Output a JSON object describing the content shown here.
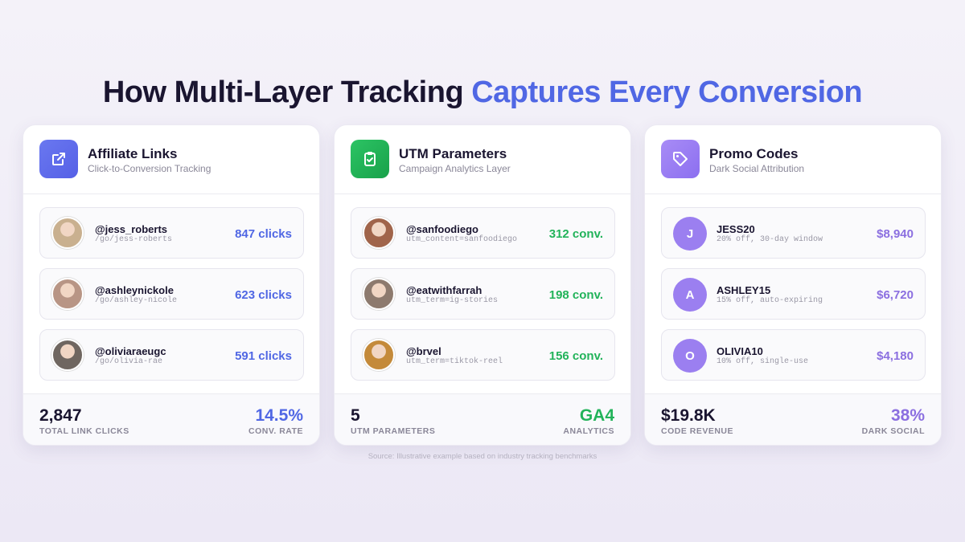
{
  "title": {
    "main": "How Multi-Layer Tracking",
    "highlight": "Captures Every Conversion"
  },
  "cards": [
    {
      "title": "Affiliate Links",
      "subtitle": "Click-to-Conversion Tracking",
      "rows": [
        {
          "name": "@jess_roberts",
          "detail": "/go/jess-roberts",
          "metric": "847 clicks"
        },
        {
          "name": "@ashleynickole",
          "detail": "/go/ashley-nicole",
          "metric": "623 clicks"
        },
        {
          "name": "@oliviaraeugc",
          "detail": "/go/olivia-rae",
          "metric": "591 clicks"
        }
      ],
      "stats": [
        {
          "value": "2,847",
          "label": "TOTAL LINK CLICKS"
        },
        {
          "value": "14.5%",
          "label": "CONV. RATE"
        }
      ]
    },
    {
      "title": "UTM Parameters",
      "subtitle": "Campaign Analytics Layer",
      "rows": [
        {
          "name": "@sanfoodiego",
          "detail": "utm_content=sanfoodiego",
          "metric": "312 conv."
        },
        {
          "name": "@eatwithfarrah",
          "detail": "utm_term=ig-stories",
          "metric": "198 conv."
        },
        {
          "name": "@brvel",
          "detail": "utm_term=tiktok-reel",
          "metric": "156 conv."
        }
      ],
      "stats": [
        {
          "value": "5",
          "label": "UTM PARAMETERS"
        },
        {
          "value": "GA4",
          "label": "ANALYTICS"
        }
      ]
    },
    {
      "title": "Promo Codes",
      "subtitle": "Dark Social Attribution",
      "rows": [
        {
          "initial": "J",
          "name": "JESS20",
          "detail": "20% off, 30-day window",
          "metric": "$8,940"
        },
        {
          "initial": "A",
          "name": "ASHLEY15",
          "detail": "15% off, auto-expiring",
          "metric": "$6,720"
        },
        {
          "initial": "O",
          "name": "OLIVIA10",
          "detail": "10% off, single-use",
          "metric": "$4,180"
        }
      ],
      "stats": [
        {
          "value": "$19.8K",
          "label": "CODE REVENUE"
        },
        {
          "value": "38%",
          "label": "DARK SOCIAL"
        }
      ]
    }
  ],
  "source": "Source: Illustrative example based on industry tracking benchmarks"
}
